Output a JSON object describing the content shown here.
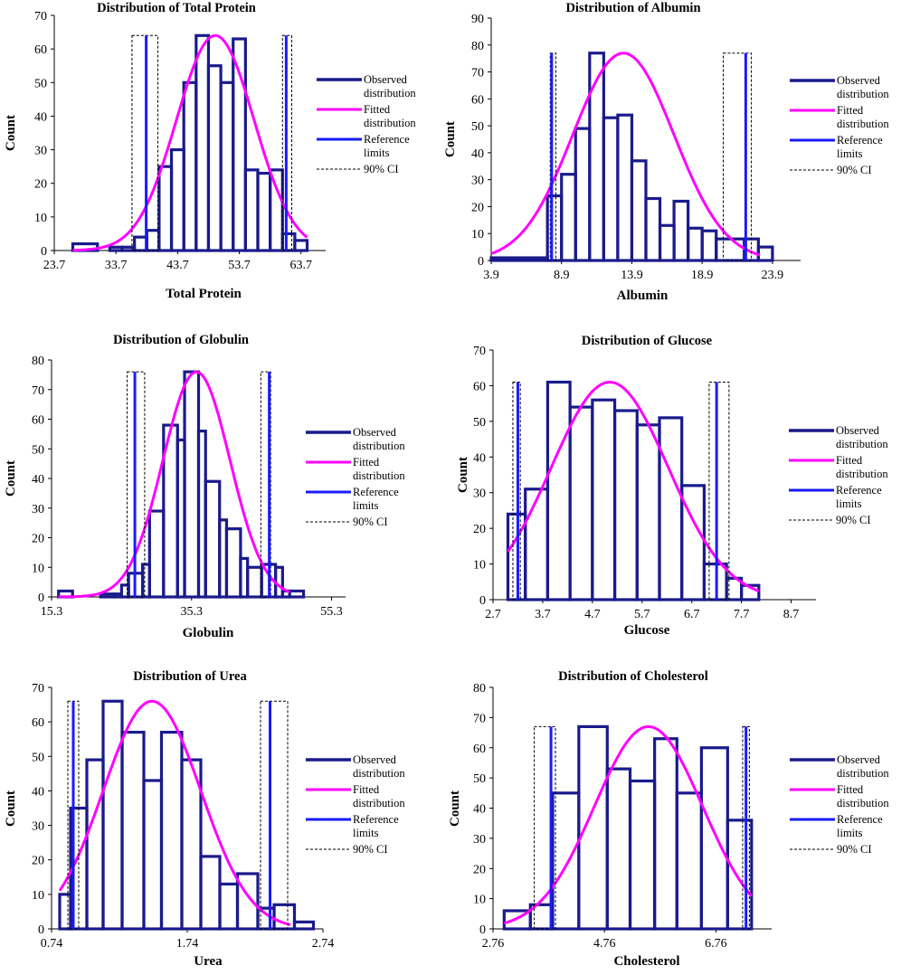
{
  "figure": {
    "colors": {
      "observed": "#1a1a8c",
      "fitted": "#ff00ff",
      "reference": "#1a1aff",
      "ci": "#000000"
    }
  },
  "chart_data": [
    {
      "type": "bar",
      "title": "Distribution of Total Protein",
      "xlabel": "Total Protein",
      "ylabel": "Count",
      "xlim": [
        23.7,
        67.7
      ],
      "ylim": [
        0,
        70
      ],
      "xticks": [
        23.7,
        33.7,
        43.7,
        53.7,
        63.7
      ],
      "xtick_labels": [
        "23.7",
        "33.7",
        "43.7",
        "53.7",
        "63.7"
      ],
      "yticks": [
        0,
        10,
        20,
        30,
        40,
        50,
        60,
        70
      ],
      "bins": [
        {
          "x0": 26.7,
          "x1": 30.7,
          "v": 2
        },
        {
          "x0": 30.7,
          "x1": 32.7,
          "v": 0
        },
        {
          "x0": 32.7,
          "x1": 34.7,
          "v": 1
        },
        {
          "x0": 34.7,
          "x1": 36.7,
          "v": 1
        },
        {
          "x0": 36.7,
          "x1": 38.7,
          "v": 4
        },
        {
          "x0": 38.7,
          "x1": 40.7,
          "v": 6
        },
        {
          "x0": 40.7,
          "x1": 42.7,
          "v": 25
        },
        {
          "x0": 42.7,
          "x1": 44.7,
          "v": 30
        },
        {
          "x0": 44.7,
          "x1": 46.7,
          "v": 50
        },
        {
          "x0": 46.7,
          "x1": 48.7,
          "v": 64
        },
        {
          "x0": 48.7,
          "x1": 50.7,
          "v": 55
        },
        {
          "x0": 50.7,
          "x1": 52.7,
          "v": 50
        },
        {
          "x0": 52.7,
          "x1": 54.7,
          "v": 63
        },
        {
          "x0": 54.7,
          "x1": 56.7,
          "v": 24
        },
        {
          "x0": 56.7,
          "x1": 58.7,
          "v": 23
        },
        {
          "x0": 58.7,
          "x1": 60.7,
          "v": 24
        },
        {
          "x0": 60.7,
          "x1": 62.7,
          "v": 5
        },
        {
          "x0": 62.7,
          "x1": 64.7,
          "v": 3
        }
      ],
      "fit": {
        "mu": 49.8,
        "sigma": 6.3,
        "peak": 64,
        "x0": 26.7,
        "x1": 64.7
      },
      "reference_limits": [
        38.6,
        61.3
      ],
      "ci": [
        [
          36.3,
          40.5
        ],
        [
          60.7,
          62.2
        ]
      ],
      "ci_top": 64,
      "legend_labels": [
        "Observed",
        "distribution",
        "Fitted",
        "distribution",
        "Reference",
        "limits",
        "90% CI"
      ]
    },
    {
      "type": "bar",
      "title": "Distribution of Albumin",
      "xlabel": "Albumin",
      "ylabel": "Count",
      "xlim": [
        3.9,
        25.9
      ],
      "ylim": [
        0,
        90
      ],
      "xticks": [
        3.9,
        8.9,
        13.9,
        18.9,
        23.9
      ],
      "xtick_labels": [
        "3.9",
        "8.9",
        "13.9",
        "18.9",
        "23.9"
      ],
      "yticks": [
        0,
        10,
        20,
        30,
        40,
        50,
        60,
        70,
        80,
        90
      ],
      "bins": [
        {
          "x0": 3.9,
          "x1": 7.9,
          "v": 1
        },
        {
          "x0": 7.9,
          "x1": 8.9,
          "v": 24
        },
        {
          "x0": 8.9,
          "x1": 9.9,
          "v": 32
        },
        {
          "x0": 9.9,
          "x1": 10.9,
          "v": 49
        },
        {
          "x0": 10.9,
          "x1": 11.9,
          "v": 77
        },
        {
          "x0": 11.9,
          "x1": 12.9,
          "v": 53
        },
        {
          "x0": 12.9,
          "x1": 13.9,
          "v": 54
        },
        {
          "x0": 13.9,
          "x1": 14.9,
          "v": 37
        },
        {
          "x0": 14.9,
          "x1": 15.9,
          "v": 23
        },
        {
          "x0": 15.9,
          "x1": 16.9,
          "v": 13
        },
        {
          "x0": 16.9,
          "x1": 17.9,
          "v": 22
        },
        {
          "x0": 17.9,
          "x1": 18.9,
          "v": 12
        },
        {
          "x0": 18.9,
          "x1": 19.9,
          "v": 11
        },
        {
          "x0": 19.9,
          "x1": 21.9,
          "v": 8
        },
        {
          "x0": 21.9,
          "x1": 22.9,
          "v": 8
        },
        {
          "x0": 22.9,
          "x1": 23.9,
          "v": 5
        }
      ],
      "fit": {
        "mu": 13.3,
        "sigma": 3.6,
        "peak": 77,
        "x0": 3.9,
        "x1": 23.0
      },
      "reference_limits": [
        8.2,
        22.0
      ],
      "ci": [
        [
          8.1,
          8.5
        ],
        [
          20.4,
          22.4
        ]
      ],
      "ci_top": 77,
      "legend_labels": [
        "Observed",
        "distribution",
        "Fitted",
        "distribution",
        "Reference",
        "limits",
        "90% CI"
      ]
    },
    {
      "type": "bar",
      "title": "Distribution of Globulin",
      "xlabel": "Globulin",
      "ylabel": "Count",
      "xlim": [
        15.3,
        57.3
      ],
      "ylim": [
        0,
        80
      ],
      "xticks": [
        15.3,
        35.3,
        55.3
      ],
      "xtick_labels": [
        "15.3",
        "35.3",
        "55.3"
      ],
      "yticks": [
        0,
        10,
        20,
        30,
        40,
        50,
        60,
        70,
        80
      ],
      "bins": [
        {
          "x0": 16.3,
          "x1": 18.3,
          "v": 2
        },
        {
          "x0": 18.3,
          "x1": 20.3,
          "v": 0
        },
        {
          "x0": 20.3,
          "x1": 22.3,
          "v": 0
        },
        {
          "x0": 22.3,
          "x1": 24.3,
          "v": 1
        },
        {
          "x0": 24.3,
          "x1": 25.3,
          "v": 1
        },
        {
          "x0": 25.3,
          "x1": 26.3,
          "v": 4
        },
        {
          "x0": 26.3,
          "x1": 28.3,
          "v": 8
        },
        {
          "x0": 28.3,
          "x1": 29.3,
          "v": 11
        },
        {
          "x0": 29.3,
          "x1": 31.3,
          "v": 29
        },
        {
          "x0": 31.3,
          "x1": 33.3,
          "v": 58
        },
        {
          "x0": 33.3,
          "x1": 34.3,
          "v": 53
        },
        {
          "x0": 34.3,
          "x1": 36.3,
          "v": 76
        },
        {
          "x0": 36.3,
          "x1": 37.3,
          "v": 56
        },
        {
          "x0": 37.3,
          "x1": 39.3,
          "v": 39
        },
        {
          "x0": 39.3,
          "x1": 40.3,
          "v": 26
        },
        {
          "x0": 40.3,
          "x1": 42.3,
          "v": 23
        },
        {
          "x0": 42.3,
          "x1": 43.3,
          "v": 13
        },
        {
          "x0": 43.3,
          "x1": 45.3,
          "v": 10
        },
        {
          "x0": 45.3,
          "x1": 47.3,
          "v": 11
        },
        {
          "x0": 47.3,
          "x1": 48.3,
          "v": 10
        },
        {
          "x0": 48.3,
          "x1": 49.3,
          "v": 2
        },
        {
          "x0": 49.3,
          "x1": 51.3,
          "v": 2
        }
      ],
      "fit": {
        "mu": 36.0,
        "sigma": 4.8,
        "peak": 76,
        "x0": 16.3,
        "x1": 49.3
      },
      "reference_limits": [
        27.2,
        46.4
      ],
      "ci": [
        [
          26.1,
          28.6
        ],
        [
          45.2,
          46.6
        ]
      ],
      "ci_top": 76,
      "legend_labels": [
        "Observed",
        "distribution",
        "Fitted",
        "distribution",
        "Reference",
        "limits",
        "90% CI"
      ]
    },
    {
      "type": "bar",
      "title": "Distribution of Glucose",
      "xlabel": "Glucose",
      "ylabel": "Count",
      "xlim": [
        2.7,
        9.2
      ],
      "ylim": [
        0,
        70
      ],
      "xticks": [
        2.7,
        3.7,
        4.7,
        5.7,
        6.7,
        7.7,
        8.7
      ],
      "xtick_labels": [
        "2.7",
        "3.7",
        "4.7",
        "5.7",
        "6.7",
        "7.7",
        "8.7"
      ],
      "yticks": [
        0,
        10,
        20,
        30,
        40,
        50,
        60,
        70
      ],
      "bins": [
        {
          "x0": 3.0,
          "x1": 3.35,
          "v": 24
        },
        {
          "x0": 3.35,
          "x1": 3.8,
          "v": 31
        },
        {
          "x0": 3.8,
          "x1": 4.25,
          "v": 61
        },
        {
          "x0": 4.25,
          "x1": 4.7,
          "v": 54
        },
        {
          "x0": 4.7,
          "x1": 5.15,
          "v": 56
        },
        {
          "x0": 5.15,
          "x1": 5.6,
          "v": 53
        },
        {
          "x0": 5.6,
          "x1": 6.05,
          "v": 49
        },
        {
          "x0": 6.05,
          "x1": 6.5,
          "v": 51
        },
        {
          "x0": 6.5,
          "x1": 6.95,
          "v": 32
        },
        {
          "x0": 6.95,
          "x1": 7.4,
          "v": 10
        },
        {
          "x0": 7.4,
          "x1": 7.7,
          "v": 6
        },
        {
          "x0": 7.7,
          "x1": 8.05,
          "v": 4
        }
      ],
      "fit": {
        "mu": 5.05,
        "sigma": 1.18,
        "peak": 61,
        "x0": 3.0,
        "x1": 8.05
      },
      "reference_limits": [
        3.2,
        7.2
      ],
      "ci": [
        [
          3.1,
          3.25
        ],
        [
          7.05,
          7.45
        ]
      ],
      "ci_top": 61,
      "legend_labels": [
        "Observed",
        "distribution",
        "Fitted",
        "distribution",
        "Reference",
        "limits",
        "90% CI"
      ]
    },
    {
      "type": "bar",
      "title": "Distribution of Urea",
      "xlabel": "Urea",
      "ylabel": "Count",
      "xlim": [
        0.74,
        2.74
      ],
      "ylim": [
        0,
        70
      ],
      "xticks": [
        0.74,
        1.74,
        2.74
      ],
      "xtick_labels": [
        "0.74",
        "1.74",
        "2.74"
      ],
      "yticks": [
        0,
        10,
        20,
        30,
        40,
        50,
        60,
        70
      ],
      "bins": [
        {
          "x0": 0.8,
          "x1": 0.88,
          "v": 10
        },
        {
          "x0": 0.88,
          "x1": 1.0,
          "v": 35
        },
        {
          "x0": 1.0,
          "x1": 1.12,
          "v": 49
        },
        {
          "x0": 1.12,
          "x1": 1.26,
          "v": 66
        },
        {
          "x0": 1.26,
          "x1": 1.42,
          "v": 57
        },
        {
          "x0": 1.42,
          "x1": 1.55,
          "v": 43
        },
        {
          "x0": 1.55,
          "x1": 1.7,
          "v": 57
        },
        {
          "x0": 1.7,
          "x1": 1.84,
          "v": 49
        },
        {
          "x0": 1.84,
          "x1": 1.98,
          "v": 21
        },
        {
          "x0": 1.98,
          "x1": 2.11,
          "v": 13
        },
        {
          "x0": 2.11,
          "x1": 2.26,
          "v": 16
        },
        {
          "x0": 2.26,
          "x1": 2.38,
          "v": 6
        },
        {
          "x0": 2.38,
          "x1": 2.53,
          "v": 7
        },
        {
          "x0": 2.53,
          "x1": 2.67,
          "v": 2
        }
      ],
      "fit": {
        "mu": 1.48,
        "sigma": 0.36,
        "peak": 66,
        "x0": 0.8,
        "x1": 2.5
      },
      "reference_limits": [
        0.9,
        2.35
      ],
      "ci": [
        [
          0.86,
          0.94
        ],
        [
          2.28,
          2.48
        ]
      ],
      "ci_top": 66,
      "legend_labels": [
        "Observed",
        "distribution",
        "Fitted",
        "distribution",
        "Reference",
        "limits",
        "90% CI"
      ]
    },
    {
      "type": "bar",
      "title": "Distribution of Cholesterol",
      "xlabel": "Cholesterol",
      "ylabel": "Count",
      "xlim": [
        2.76,
        7.76
      ],
      "ylim": [
        0,
        80
      ],
      "xticks": [
        2.76,
        4.76,
        6.76
      ],
      "xtick_labels": [
        "2.76",
        "4.76",
        "6.76"
      ],
      "yticks": [
        0,
        10,
        20,
        30,
        40,
        50,
        60,
        70,
        80
      ],
      "bins": [
        {
          "x0": 2.96,
          "x1": 3.43,
          "v": 6
        },
        {
          "x0": 3.43,
          "x1": 3.83,
          "v": 8
        },
        {
          "x0": 3.83,
          "x1": 4.3,
          "v": 45
        },
        {
          "x0": 4.3,
          "x1": 4.81,
          "v": 67
        },
        {
          "x0": 4.81,
          "x1": 5.22,
          "v": 53
        },
        {
          "x0": 5.22,
          "x1": 5.66,
          "v": 49
        },
        {
          "x0": 5.66,
          "x1": 6.06,
          "v": 63
        },
        {
          "x0": 6.06,
          "x1": 6.5,
          "v": 45
        },
        {
          "x0": 6.5,
          "x1": 6.97,
          "v": 60
        },
        {
          "x0": 6.97,
          "x1": 7.4,
          "v": 36
        }
      ],
      "fit": {
        "mu": 5.55,
        "sigma": 0.97,
        "peak": 67,
        "x0": 2.96,
        "x1": 7.4
      },
      "reference_limits": [
        3.8,
        7.3
      ],
      "ci": [
        [
          3.5,
          3.88
        ],
        [
          7.24,
          7.36
        ]
      ],
      "ci_top": 67,
      "legend_labels": [
        "Observed",
        "distribution",
        "Fitted",
        "distribution",
        "Reference",
        "limits",
        "90% CI"
      ]
    }
  ]
}
